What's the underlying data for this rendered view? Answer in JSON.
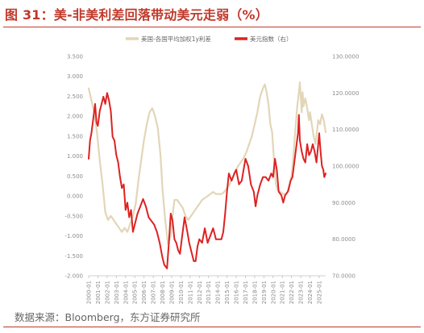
{
  "header": {
    "title": "图 31：美-非美利差回落带动美元走弱（%）"
  },
  "footer": {
    "source": "数据来源：Bloomberg，东方证券研究所"
  },
  "chart_data": {
    "type": "line",
    "title": "",
    "xlabel": "",
    "ylabel": "",
    "legend_placement": "top-right",
    "grid": false,
    "x_ticks": [
      "2000-01",
      "2001-01",
      "2002-01",
      "2003-01",
      "2004-01",
      "2005-01",
      "2006-01",
      "2007-01",
      "2008-01",
      "2009-01",
      "2010-01",
      "2011-01",
      "2012-01",
      "2013-01",
      "2014-01",
      "2015-01",
      "2016-01",
      "2017-01",
      "2018-01",
      "2019-01",
      "2020-01",
      "2021-01",
      "2022-01",
      "2023-01",
      "2024-01",
      "2025-01"
    ],
    "y_left_ticks": [
      "3.500",
      "3.000",
      "2.500",
      "2.000",
      "1.500",
      "1.000",
      "0.500",
      "0.000",
      "-0.500",
      "-1.000",
      "-1.500",
      "-2.000"
    ],
    "y_right_ticks": [
      "130.0000",
      "120.0000",
      "110.0000",
      "100.0000",
      "90.0000",
      "80.0000",
      "70.0000"
    ],
    "ylim_left": [
      -2.0,
      3.5
    ],
    "ylim_right": [
      70,
      130
    ],
    "xlim": [
      2000.0,
      2025.7
    ],
    "series": [
      {
        "name": "美国-各国平均加权1y利差",
        "axis": "left",
        "color": "#e2d6b8",
        "points": [
          [
            2000.0,
            2.7
          ],
          [
            2000.3,
            2.4
          ],
          [
            2000.6,
            2.1
          ],
          [
            2000.9,
            1.6
          ],
          [
            2001.2,
            0.9
          ],
          [
            2001.5,
            0.3
          ],
          [
            2001.8,
            -0.4
          ],
          [
            2002.1,
            -0.6
          ],
          [
            2002.4,
            -0.5
          ],
          [
            2002.7,
            -0.6
          ],
          [
            2003.0,
            -0.7
          ],
          [
            2003.3,
            -0.8
          ],
          [
            2003.6,
            -0.9
          ],
          [
            2003.9,
            -0.8
          ],
          [
            2004.2,
            -0.9
          ],
          [
            2004.5,
            -0.7
          ],
          [
            2004.8,
            -0.5
          ],
          [
            2005.1,
            -0.2
          ],
          [
            2005.4,
            0.4
          ],
          [
            2005.7,
            0.9
          ],
          [
            2006.0,
            1.4
          ],
          [
            2006.3,
            1.8
          ],
          [
            2006.6,
            2.1
          ],
          [
            2006.9,
            2.2
          ],
          [
            2007.2,
            2.0
          ],
          [
            2007.5,
            1.7
          ],
          [
            2007.8,
            1.0
          ],
          [
            2008.0,
            0.2
          ],
          [
            2008.3,
            -0.6
          ],
          [
            2008.6,
            -1.2
          ],
          [
            2008.9,
            -1.0
          ],
          [
            2009.1,
            -0.5
          ],
          [
            2009.3,
            -0.1
          ],
          [
            2009.6,
            -0.1
          ],
          [
            2009.9,
            -0.2
          ],
          [
            2010.2,
            -0.3
          ],
          [
            2010.5,
            -0.5
          ],
          [
            2010.8,
            -0.6
          ],
          [
            2011.1,
            -0.5
          ],
          [
            2011.4,
            -0.4
          ],
          [
            2011.7,
            -0.3
          ],
          [
            2012.0,
            -0.2
          ],
          [
            2012.3,
            -0.1
          ],
          [
            2012.6,
            -0.05
          ],
          [
            2012.9,
            0.0
          ],
          [
            2013.2,
            0.05
          ],
          [
            2013.5,
            0.1
          ],
          [
            2013.8,
            0.05
          ],
          [
            2014.1,
            0.05
          ],
          [
            2014.4,
            0.05
          ],
          [
            2014.7,
            0.1
          ],
          [
            2015.0,
            0.2
          ],
          [
            2015.3,
            0.3
          ],
          [
            2015.6,
            0.45
          ],
          [
            2015.9,
            0.6
          ],
          [
            2016.2,
            0.75
          ],
          [
            2016.5,
            0.85
          ],
          [
            2016.8,
            0.95
          ],
          [
            2017.1,
            1.1
          ],
          [
            2017.4,
            1.3
          ],
          [
            2017.7,
            1.5
          ],
          [
            2018.0,
            1.8
          ],
          [
            2018.3,
            2.1
          ],
          [
            2018.6,
            2.5
          ],
          [
            2018.9,
            2.7
          ],
          [
            2019.1,
            2.8
          ],
          [
            2019.3,
            2.6
          ],
          [
            2019.5,
            2.3
          ],
          [
            2019.7,
            1.8
          ],
          [
            2019.9,
            1.6
          ],
          [
            2020.1,
            0.9
          ],
          [
            2020.3,
            0.3
          ],
          [
            2020.5,
            0.15
          ],
          [
            2020.8,
            0.1
          ],
          [
            2021.1,
            0.05
          ],
          [
            2021.4,
            0.05
          ],
          [
            2021.7,
            0.15
          ],
          [
            2022.0,
            0.5
          ],
          [
            2022.2,
            1.0
          ],
          [
            2022.4,
            1.6
          ],
          [
            2022.6,
            2.2
          ],
          [
            2022.8,
            2.6
          ],
          [
            2022.9,
            2.85
          ],
          [
            2023.0,
            2.5
          ],
          [
            2023.1,
            2.1
          ],
          [
            2023.2,
            2.6
          ],
          [
            2023.3,
            2.25
          ],
          [
            2023.5,
            2.45
          ],
          [
            2023.7,
            2.2
          ],
          [
            2023.9,
            1.9
          ],
          [
            2024.0,
            2.1
          ],
          [
            2024.2,
            1.8
          ],
          [
            2024.4,
            1.5
          ],
          [
            2024.6,
            1.3
          ],
          [
            2024.8,
            1.7
          ],
          [
            2024.9,
            1.9
          ],
          [
            2025.1,
            1.8
          ],
          [
            2025.3,
            2.05
          ],
          [
            2025.5,
            1.9
          ],
          [
            2025.7,
            1.6
          ]
        ]
      },
      {
        "name": "美元指数（右）",
        "axis": "right",
        "color": "#dd2222",
        "points": [
          [
            2000.0,
            102.0
          ],
          [
            2000.15,
            107.0
          ],
          [
            2000.3,
            109.0
          ],
          [
            2000.5,
            113.0
          ],
          [
            2000.7,
            117.0
          ],
          [
            2000.85,
            112.0
          ],
          [
            2001.0,
            111.0
          ],
          [
            2001.2,
            115.0
          ],
          [
            2001.4,
            117.0
          ],
          [
            2001.6,
            119.0
          ],
          [
            2001.8,
            117.0
          ],
          [
            2002.0,
            120.0
          ],
          [
            2002.2,
            118.0
          ],
          [
            2002.4,
            115.0
          ],
          [
            2002.6,
            108.0
          ],
          [
            2002.8,
            107.0
          ],
          [
            2003.0,
            103.0
          ],
          [
            2003.2,
            101.0
          ],
          [
            2003.4,
            97.0
          ],
          [
            2003.6,
            94.0
          ],
          [
            2003.8,
            95.0
          ],
          [
            2004.0,
            88.0
          ],
          [
            2004.2,
            90.0
          ],
          [
            2004.4,
            86.0
          ],
          [
            2004.6,
            88.0
          ],
          [
            2004.8,
            82.0
          ],
          [
            2005.0,
            84.0
          ],
          [
            2005.3,
            87.0
          ],
          [
            2005.6,
            89.0
          ],
          [
            2005.9,
            91.0
          ],
          [
            2006.2,
            89.0
          ],
          [
            2006.5,
            86.0
          ],
          [
            2006.8,
            85.0
          ],
          [
            2007.1,
            84.0
          ],
          [
            2007.4,
            82.0
          ],
          [
            2007.7,
            79.0
          ],
          [
            2008.0,
            75.0
          ],
          [
            2008.2,
            73.0
          ],
          [
            2008.5,
            72.0
          ],
          [
            2008.7,
            79.0
          ],
          [
            2008.9,
            87.0
          ],
          [
            2009.1,
            85.0
          ],
          [
            2009.3,
            80.0
          ],
          [
            2009.5,
            79.0
          ],
          [
            2009.7,
            77.0
          ],
          [
            2009.9,
            76.0
          ],
          [
            2010.1,
            80.0
          ],
          [
            2010.4,
            86.0
          ],
          [
            2010.7,
            82.0
          ],
          [
            2010.9,
            79.0
          ],
          [
            2011.2,
            76.0
          ],
          [
            2011.4,
            74.0
          ],
          [
            2011.6,
            74.0
          ],
          [
            2011.8,
            78.0
          ],
          [
            2012.0,
            80.0
          ],
          [
            2012.3,
            79.0
          ],
          [
            2012.6,
            83.0
          ],
          [
            2012.9,
            79.0
          ],
          [
            2013.2,
            81.0
          ],
          [
            2013.5,
            83.0
          ],
          [
            2013.8,
            80.0
          ],
          [
            2014.1,
            80.0
          ],
          [
            2014.4,
            80.0
          ],
          [
            2014.6,
            82.0
          ],
          [
            2014.8,
            87.0
          ],
          [
            2015.0,
            93.0
          ],
          [
            2015.2,
            98.0
          ],
          [
            2015.5,
            96.0
          ],
          [
            2015.8,
            98.0
          ],
          [
            2016.0,
            99.0
          ],
          [
            2016.3,
            95.0
          ],
          [
            2016.6,
            96.0
          ],
          [
            2016.8,
            99.0
          ],
          [
            2017.0,
            102.0
          ],
          [
            2017.3,
            100.0
          ],
          [
            2017.6,
            95.0
          ],
          [
            2017.9,
            93.0
          ],
          [
            2018.1,
            89.0
          ],
          [
            2018.3,
            92.0
          ],
          [
            2018.6,
            95.0
          ],
          [
            2018.9,
            97.0
          ],
          [
            2019.2,
            97.0
          ],
          [
            2019.5,
            96.0
          ],
          [
            2019.8,
            98.0
          ],
          [
            2020.0,
            97.0
          ],
          [
            2020.2,
            102.0
          ],
          [
            2020.4,
            99.0
          ],
          [
            2020.6,
            93.0
          ],
          [
            2020.9,
            92.0
          ],
          [
            2021.1,
            90.0
          ],
          [
            2021.3,
            92.0
          ],
          [
            2021.6,
            93.0
          ],
          [
            2021.9,
            96.0
          ],
          [
            2022.1,
            97.0
          ],
          [
            2022.3,
            101.0
          ],
          [
            2022.5,
            105.0
          ],
          [
            2022.7,
            109.0
          ],
          [
            2022.8,
            114.0
          ],
          [
            2022.9,
            107.0
          ],
          [
            2023.1,
            104.0
          ],
          [
            2023.3,
            102.0
          ],
          [
            2023.5,
            101.0
          ],
          [
            2023.7,
            106.0
          ],
          [
            2023.9,
            103.0
          ],
          [
            2024.1,
            104.0
          ],
          [
            2024.3,
            106.0
          ],
          [
            2024.5,
            104.0
          ],
          [
            2024.7,
            101.0
          ],
          [
            2024.9,
            106.0
          ],
          [
            2025.0,
            109.0
          ],
          [
            2025.15,
            104.0
          ],
          [
            2025.3,
            100.0
          ],
          [
            2025.45,
            99.0
          ],
          [
            2025.55,
            97.0
          ],
          [
            2025.7,
            98.0
          ]
        ]
      }
    ]
  }
}
